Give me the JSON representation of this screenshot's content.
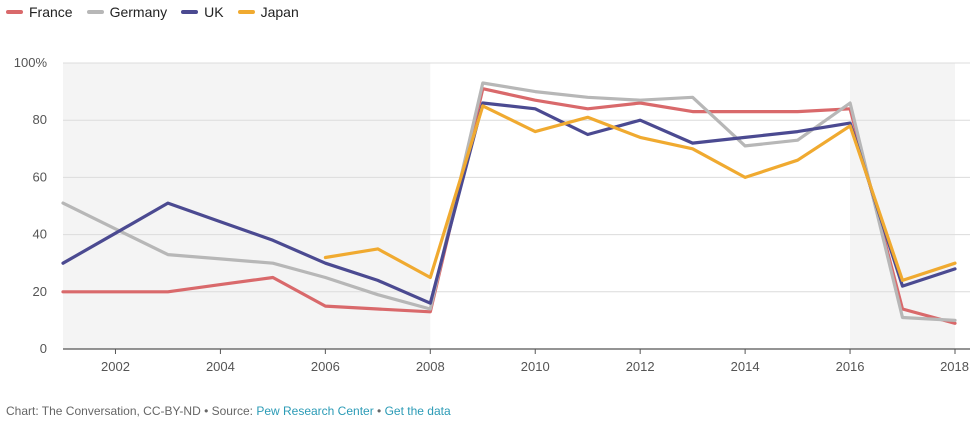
{
  "chart_data": {
    "type": "line",
    "x": [
      2001,
      2002,
      2003,
      2004,
      2005,
      2006,
      2007,
      2008,
      2009,
      2010,
      2011,
      2012,
      2013,
      2014,
      2015,
      2016,
      2017,
      2018
    ],
    "series": [
      {
        "name": "France",
        "color": "#d9696b",
        "values": [
          20,
          20,
          20,
          22.5,
          25,
          15,
          14,
          13,
          91,
          87,
          84,
          86,
          83,
          83,
          83,
          84,
          14,
          9
        ]
      },
      {
        "name": "Germany",
        "color": "#b7b7b7",
        "values": [
          51,
          42,
          33,
          31.5,
          30,
          25,
          19,
          14,
          93,
          90,
          88,
          87,
          88,
          71,
          73,
          86,
          11,
          10
        ]
      },
      {
        "name": "UK",
        "color": "#4b4a91",
        "values": [
          30,
          40.5,
          51,
          44.5,
          38,
          30,
          24,
          16,
          86,
          84,
          75,
          80,
          72,
          74,
          76,
          79,
          22,
          28
        ]
      },
      {
        "name": "Japan",
        "color": "#f0aa30",
        "values": [
          null,
          null,
          null,
          null,
          null,
          32,
          35,
          25,
          85,
          76,
          81,
          74,
          70,
          60,
          66,
          78,
          24,
          30
        ]
      }
    ],
    "shaded_ranges": [
      [
        2001,
        2008
      ],
      [
        2016,
        2018
      ]
    ],
    "xticks": [
      2002,
      2004,
      2006,
      2008,
      2010,
      2012,
      2014,
      2016,
      2018
    ],
    "yticks": [
      0,
      20,
      40,
      60,
      80,
      100
    ],
    "ytick_labels": [
      "0",
      "20",
      "40",
      "60",
      "80",
      "100%"
    ],
    "ylim": [
      0,
      100
    ],
    "xlim": [
      2001,
      2018
    ],
    "legend_position": "top-left",
    "grid": true,
    "title": "",
    "xlabel": "",
    "ylabel": ""
  },
  "source": {
    "prefix": "Chart: The Conversation, CC-BY-ND • Source: ",
    "source_link": "Pew Research Center",
    "separator": " • ",
    "data_link": "Get the data"
  }
}
